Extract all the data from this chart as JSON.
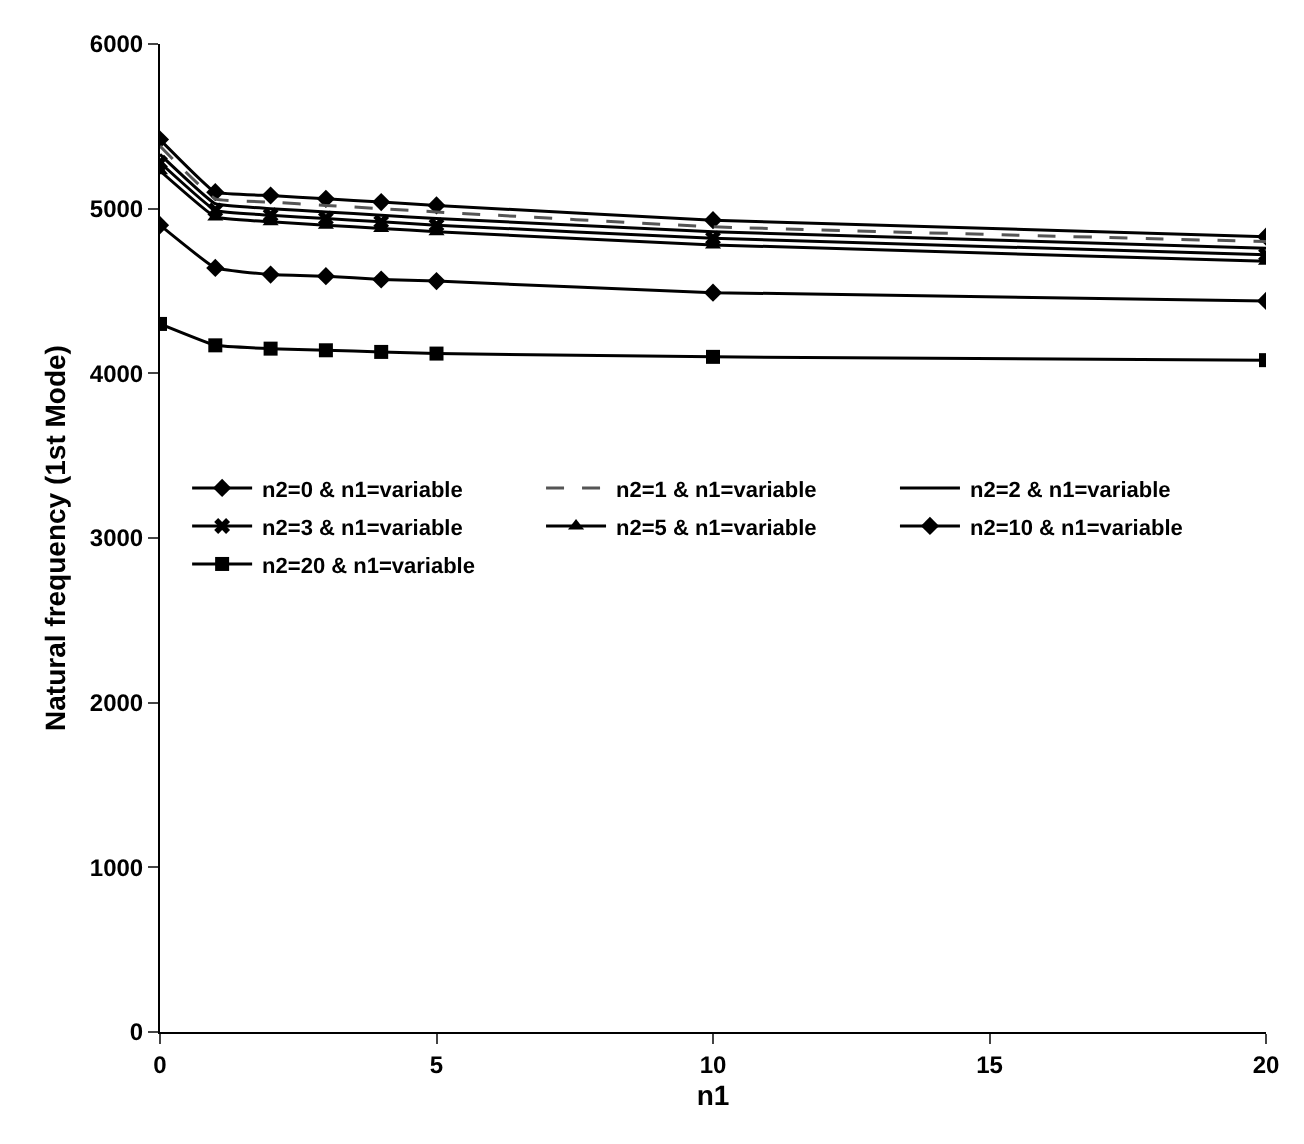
{
  "chart_data": {
    "type": "line",
    "xlabel": "n1",
    "ylabel": "Natural frequency (1st Mode)",
    "x": [
      0,
      1,
      2,
      3,
      4,
      5,
      10,
      20
    ],
    "xlim": [
      0,
      20
    ],
    "xticks": [
      0,
      5,
      10,
      15,
      20
    ],
    "ylim": [
      0,
      6000
    ],
    "yticks": [
      0,
      1000,
      2000,
      3000,
      4000,
      5000,
      6000
    ],
    "legend": "left",
    "series": [
      {
        "name": "n2=0 & n1=variable",
        "color": "#000000",
        "marker": "diamond",
        "line_style": "solid",
        "values": [
          5420,
          5100,
          5080,
          5060,
          5040,
          5020,
          4930,
          4830
        ]
      },
      {
        "name": "n2=1 & n1=variable",
        "color": "#555555",
        "marker": "none",
        "line_style": "dashed",
        "values": [
          5380,
          5060,
          5040,
          5020,
          5000,
          4980,
          4890,
          4800
        ]
      },
      {
        "name": "n2=2 & n1=variable",
        "color": "#000000",
        "marker": "none",
        "line_style": "solid",
        "values": [
          5330,
          5030,
          5000,
          4980,
          4960,
          4940,
          4860,
          4760
        ]
      },
      {
        "name": "n2=3 & n1=variable",
        "color": "#000000",
        "marker": "cross",
        "line_style": "solid",
        "values": [
          5280,
          4990,
          4960,
          4940,
          4920,
          4900,
          4820,
          4720
        ]
      },
      {
        "name": "n2=5 & n1=variable",
        "color": "#000000",
        "marker": "triangle",
        "line_style": "solid",
        "values": [
          5230,
          4950,
          4920,
          4900,
          4880,
          4860,
          4780,
          4680
        ]
      },
      {
        "name": "n2=10 & n1=variable",
        "color": "#000000",
        "marker": "diamond",
        "line_style": "solid",
        "values": [
          4900,
          4640,
          4600,
          4590,
          4570,
          4560,
          4490,
          4440
        ]
      },
      {
        "name": "n2=20 & n1=variable",
        "color": "#000000",
        "marker": "square",
        "line_style": "solid",
        "values": [
          4300,
          4170,
          4150,
          4140,
          4130,
          4120,
          4100,
          4080
        ]
      }
    ]
  }
}
